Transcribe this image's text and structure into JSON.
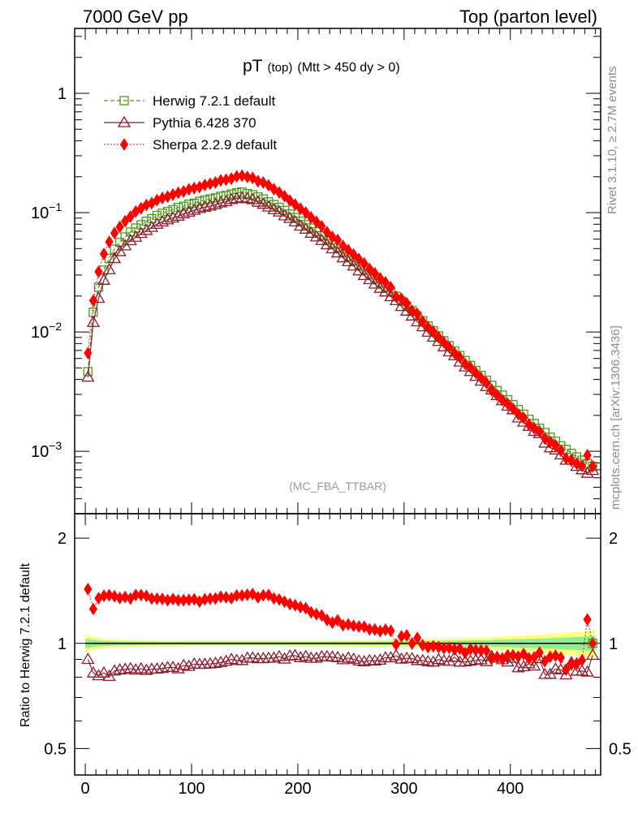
{
  "header": {
    "left": "7000 GeV pp",
    "right": "Top (parton level)"
  },
  "side_labels": {
    "rivet": "Rivet 3.1.10, ≥ 2.7M events",
    "mcplots": "mcplots.cern.ch [arXiv:1306.3436]"
  },
  "plot_title": {
    "main": "pT",
    "sub": "(top)",
    "cuts": "(Mtt > 450 dy > 0)"
  },
  "analysis_tag": "(MC_FBA_TTBAR)",
  "legend": [
    {
      "name": "Herwig 7.2.1 default",
      "color": "#4a9a1a",
      "marker": "open-square",
      "line": "dashed"
    },
    {
      "name": "Pythia 6.428 370",
      "color": "#8b1a2a",
      "marker": "open-triangle",
      "line": "solid"
    },
    {
      "name": "Sherpa 2.2.9 default",
      "color": "#ff0000",
      "marker": "filled-diamond",
      "line": "dotted"
    }
  ],
  "chart_data": [
    {
      "type": "line",
      "title": "pT (top) (Mtt > 450 dy > 0)",
      "yscale": "log",
      "xlim": [
        -10,
        485
      ],
      "ylim": [
        0.0003,
        3.5
      ],
      "yticks": [
        {
          "v": 1,
          "label": "1",
          "exp": ""
        },
        {
          "v": 0.1,
          "label": "10",
          "exp": "−1"
        },
        {
          "v": 0.01,
          "label": "10",
          "exp": "−2"
        },
        {
          "v": 0.001,
          "label": "10",
          "exp": "−3"
        }
      ],
      "x": [
        2.5,
        7.5,
        12.5,
        17.5,
        22.5,
        27.5,
        32.5,
        37.5,
        42.5,
        47.5,
        52.5,
        57.5,
        62.5,
        67.5,
        72.5,
        77.5,
        82.5,
        87.5,
        92.5,
        97.5,
        102.5,
        107.5,
        112.5,
        117.5,
        122.5,
        127.5,
        132.5,
        137.5,
        142.5,
        147.5,
        152.5,
        157.5,
        162.5,
        167.5,
        172.5,
        177.5,
        182.5,
        187.5,
        192.5,
        197.5,
        202.5,
        207.5,
        212.5,
        217.5,
        222.5,
        227.5,
        232.5,
        237.5,
        242.5,
        247.5,
        252.5,
        257.5,
        262.5,
        267.5,
        272.5,
        277.5,
        282.5,
        287.5,
        292.5,
        297.5,
        302.5,
        307.5,
        312.5,
        317.5,
        322.5,
        327.5,
        332.5,
        337.5,
        342.5,
        347.5,
        352.5,
        357.5,
        362.5,
        367.5,
        372.5,
        377.5,
        382.5,
        387.5,
        392.5,
        397.5,
        402.5,
        407.5,
        412.5,
        417.5,
        422.5,
        427.5,
        432.5,
        437.5,
        442.5,
        447.5,
        452.5,
        457.5,
        462.5,
        467.5,
        472.5,
        477.5
      ],
      "series": [
        {
          "name": "Herwig 7.2.1 default",
          "values": [
            0.00465,
            0.01462,
            0.02374,
            0.03298,
            0.04133,
            0.04945,
            0.05627,
            0.06256,
            0.06889,
            0.07431,
            0.07915,
            0.08476,
            0.08926,
            0.09475,
            0.09888,
            0.1023,
            0.1058,
            0.1105,
            0.1132,
            0.1177,
            0.1201,
            0.1244,
            0.1276,
            0.1302,
            0.1333,
            0.1371,
            0.1394,
            0.1431,
            0.1468,
            0.149,
            0.1445,
            0.1413,
            0.1355,
            0.1302,
            0.1232,
            0.1169,
            0.1107,
            0.1043,
            0.09739,
            0.09097,
            0.08491,
            0.07925,
            0.07427,
            0.06917,
            0.06392,
            0.05871,
            0.05456,
            0.05059,
            0.04665,
            0.04283,
            0.03966,
            0.03653,
            0.03362,
            0.03078,
            0.02831,
            0.02595,
            0.02382,
            0.02174,
            0.0199,
            0.01814,
            0.0165,
            0.01506,
            0.01363,
            0.01239,
            0.01124,
            0.01025,
            0.009284,
            0.008452,
            0.007675,
            0.006934,
            0.006348,
            0.005753,
            0.005245,
            0.004755,
            0.004317,
            0.003942,
            0.003569,
            0.003232,
            0.002959,
            0.002706,
            0.002461,
            0.002236,
            0.002047,
            0.001856,
            0.001708,
            0.001558,
            0.001439,
            0.001313,
            0.001215,
            0.001113,
            0.001037,
            0.000961,
            0.000898,
            0.000842,
            0.000792,
            0.000748
          ]
        },
        {
          "name": "Pythia 6.428 370",
          "values": [
            0.00419,
            0.01204,
            0.01918,
            0.02714,
            0.03329,
            0.04126,
            0.04725,
            0.05275,
            0.05832,
            0.06233,
            0.06699,
            0.07098,
            0.07534,
            0.08009,
            0.08386,
            0.08728,
            0.09036,
            0.09353,
            0.09791,
            0.1012,
            0.1049,
            0.1084,
            0.1113,
            0.1138,
            0.1169,
            0.1209,
            0.1239,
            0.1288,
            0.1313,
            0.133,
            0.1312,
            0.1285,
            0.1225,
            0.1178,
            0.1117,
            0.1061,
            0.1015,
            0.09412,
            0.08968,
            0.08394,
            0.07726,
            0.07279,
            0.06734,
            0.06271,
            0.05852,
            0.05384,
            0.04986,
            0.04606,
            0.04191,
            0.03888,
            0.03574,
            0.03256,
            0.02979,
            0.02748,
            0.02522,
            0.02325,
            0.02167,
            0.01979,
            0.01834,
            0.01636,
            0.01497,
            0.01363,
            0.01217,
            0.01106,
            0.009972,
            0.009059,
            0.008347,
            0.007528,
            0.006821,
            0.006334,
            0.005609,
            0.005097,
            0.004669,
            0.004254,
            0.003875,
            0.003496,
            0.003275,
            0.002936,
            0.002656,
            0.002395,
            0.002233,
            0.001904,
            0.001757,
            0.001623,
            0.001472,
            0.001409,
            0.001173,
            0.001072,
            0.001027,
            0.000935,
            0.000843,
            0.000847,
            0.000748,
            0.000701,
            0.000656,
            0.000692
          ]
        },
        {
          "name": "Sherpa 2.2.9 default",
          "values": [
            0.00665,
            0.01834,
            0.03195,
            0.0451,
            0.05679,
            0.06743,
            0.07583,
            0.08487,
            0.09253,
            0.1022,
            0.1088,
            0.1159,
            0.1199,
            0.1272,
            0.1325,
            0.136,
            0.1417,
            0.1467,
            0.1505,
            0.1568,
            0.1606,
            0.1638,
            0.1705,
            0.1747,
            0.1791,
            0.1863,
            0.1888,
            0.1926,
            0.2013,
            0.2042,
            0.1991,
            0.1955,
            0.1835,
            0.1786,
            0.1694,
            0.1571,
            0.1478,
            0.1373,
            0.1262,
            0.1169,
            0.1078,
            0.09996,
            0.09112,
            0.08384,
            0.07682,
            0.06853,
            0.06254,
            0.05891,
            0.05256,
            0.04851,
            0.04455,
            0.0408,
            0.03748,
            0.03378,
            0.03099,
            0.02813,
            0.02606,
            0.02362,
            0.01974,
            0.01899,
            0.01739,
            0.01504,
            0.01412,
            0.01224,
            0.01096,
            0.01006,
            0.009054,
            0.008182,
            0.007454,
            0.00666,
            0.006135,
            0.005398,
            0.00505,
            0.004547,
            0.004117,
            0.003753,
            0.003233,
            0.002954,
            0.002678,
            0.002501,
            0.002274,
            0.002048,
            0.001907,
            0.001681,
            0.001558,
            0.001466,
            0.001279,
            0.001201,
            0.001121,
            0.001013,
            0.000872,
            0.000836,
            0.000787,
            0.000753,
            0.000927,
            0.000748
          ]
        }
      ]
    },
    {
      "type": "line",
      "ylabel": "Ratio to Herwig 7.2.1 default",
      "yscale": "log",
      "ylim": [
        0.42,
        2.35
      ],
      "yticks": [
        {
          "v": 2,
          "label": "2"
        },
        {
          "v": 1,
          "label": "1"
        },
        {
          "v": 0.5,
          "label": "0.5"
        }
      ],
      "xticks": [
        0,
        100,
        200,
        300,
        400
      ],
      "x": [
        2.5,
        7.5,
        12.5,
        17.5,
        22.5,
        27.5,
        32.5,
        37.5,
        42.5,
        47.5,
        52.5,
        57.5,
        62.5,
        67.5,
        72.5,
        77.5,
        82.5,
        87.5,
        92.5,
        97.5,
        102.5,
        107.5,
        112.5,
        117.5,
        122.5,
        127.5,
        132.5,
        137.5,
        142.5,
        147.5,
        152.5,
        157.5,
        162.5,
        167.5,
        172.5,
        177.5,
        182.5,
        187.5,
        192.5,
        197.5,
        202.5,
        207.5,
        212.5,
        217.5,
        222.5,
        227.5,
        232.5,
        237.5,
        242.5,
        247.5,
        252.5,
        257.5,
        262.5,
        267.5,
        272.5,
        277.5,
        282.5,
        287.5,
        292.5,
        297.5,
        302.5,
        307.5,
        312.5,
        317.5,
        322.5,
        327.5,
        332.5,
        337.5,
        342.5,
        347.5,
        352.5,
        357.5,
        362.5,
        367.5,
        372.5,
        377.5,
        382.5,
        387.5,
        392.5,
        397.5,
        402.5,
        407.5,
        412.5,
        417.5,
        422.5,
        427.5,
        432.5,
        437.5,
        442.5,
        447.5,
        452.5,
        457.5,
        462.5,
        467.5,
        472.5,
        477.5
      ],
      "band_unc": [
        0.055,
        0.043,
        0.036,
        0.032,
        0.028,
        0.026,
        0.025,
        0.024,
        0.023,
        0.022,
        0.022,
        0.021,
        0.021,
        0.02,
        0.02,
        0.02,
        0.02,
        0.02,
        0.019,
        0.019,
        0.019,
        0.019,
        0.019,
        0.019,
        0.019,
        0.019,
        0.019,
        0.019,
        0.019,
        0.019,
        0.019,
        0.019,
        0.019,
        0.019,
        0.019,
        0.019,
        0.019,
        0.019,
        0.019,
        0.02,
        0.02,
        0.02,
        0.02,
        0.02,
        0.02,
        0.02,
        0.02,
        0.021,
        0.021,
        0.021,
        0.021,
        0.022,
        0.022,
        0.022,
        0.022,
        0.023,
        0.023,
        0.024,
        0.024,
        0.025,
        0.025,
        0.026,
        0.027,
        0.027,
        0.028,
        0.029,
        0.03,
        0.031,
        0.032,
        0.033,
        0.034,
        0.035,
        0.036,
        0.037,
        0.038,
        0.04,
        0.041,
        0.043,
        0.044,
        0.046,
        0.048,
        0.05,
        0.052,
        0.054,
        0.056,
        0.059,
        0.061,
        0.064,
        0.066,
        0.069,
        0.072,
        0.075,
        0.078,
        0.081,
        0.085,
        0.088
      ],
      "series": [
        {
          "name": "Herwig 7.2.1 default",
          "values": [
            1,
            1,
            1,
            1,
            1,
            1,
            1,
            1,
            1,
            1,
            1,
            1,
            1,
            1,
            1,
            1,
            1,
            1,
            1,
            1,
            1,
            1,
            1,
            1,
            1,
            1,
            1,
            1,
            1,
            1,
            1,
            1,
            1,
            1,
            1,
            1,
            1,
            1,
            1,
            1,
            1,
            1,
            1,
            1,
            1,
            1,
            1,
            1,
            1,
            1,
            1,
            1,
            1,
            1,
            1,
            1,
            1,
            1,
            1,
            1,
            1,
            1,
            1,
            1,
            1,
            1,
            1,
            1,
            1,
            1,
            1,
            1,
            1,
            1,
            1,
            1,
            1,
            1,
            1,
            1,
            1,
            1,
            1,
            1,
            1,
            1,
            1,
            1,
            1,
            1,
            1,
            1,
            1,
            1,
            1,
            1
          ]
        },
        {
          "name": "Pythia 6.428 370",
          "values": [
            0.9,
            0.823,
            0.808,
            0.823,
            0.805,
            0.834,
            0.84,
            0.843,
            0.847,
            0.839,
            0.846,
            0.837,
            0.844,
            0.845,
            0.848,
            0.853,
            0.854,
            0.846,
            0.865,
            0.86,
            0.873,
            0.871,
            0.872,
            0.874,
            0.877,
            0.882,
            0.889,
            0.9,
            0.894,
            0.893,
            0.908,
            0.909,
            0.904,
            0.905,
            0.907,
            0.908,
            0.917,
            0.902,
            0.921,
            0.923,
            0.91,
            0.918,
            0.907,
            0.907,
            0.916,
            0.917,
            0.914,
            0.911,
            0.898,
            0.908,
            0.901,
            0.891,
            0.886,
            0.893,
            0.891,
            0.896,
            0.91,
            0.91,
            0.922,
            0.902,
            0.907,
            0.905,
            0.893,
            0.893,
            0.887,
            0.884,
            0.899,
            0.891,
            0.889,
            0.913,
            0.884,
            0.886,
            0.89,
            0.895,
            0.898,
            0.887,
            0.918,
            0.908,
            0.898,
            0.885,
            0.907,
            0.852,
            0.858,
            0.874,
            0.862,
            0.904,
            0.815,
            0.816,
            0.845,
            0.84,
            0.813,
            0.881,
            0.833,
            0.833,
            0.828,
            0.925
          ]
        },
        {
          "name": "Sherpa 2.2.9 default",
          "values": [
            1.43,
            1.254,
            1.346,
            1.368,
            1.374,
            1.364,
            1.348,
            1.357,
            1.343,
            1.375,
            1.375,
            1.367,
            1.343,
            1.342,
            1.34,
            1.329,
            1.339,
            1.328,
            1.329,
            1.332,
            1.337,
            1.317,
            1.336,
            1.342,
            1.344,
            1.359,
            1.354,
            1.346,
            1.371,
            1.371,
            1.378,
            1.384,
            1.354,
            1.372,
            1.375,
            1.344,
            1.335,
            1.316,
            1.296,
            1.285,
            1.27,
            1.261,
            1.227,
            1.212,
            1.202,
            1.167,
            1.146,
            1.164,
            1.127,
            1.133,
            1.123,
            1.117,
            1.115,
            1.097,
            1.095,
            1.084,
            1.094,
            1.086,
            0.992,
            1.047,
            1.054,
            0.999,
            1.036,
            0.988,
            0.975,
            0.981,
            0.975,
            0.968,
            0.971,
            0.96,
            0.966,
            0.938,
            0.963,
            0.956,
            0.954,
            0.952,
            0.906,
            0.914,
            0.905,
            0.924,
            0.924,
            0.916,
            0.932,
            0.906,
            0.912,
            0.941,
            0.889,
            0.915,
            0.922,
            0.91,
            0.841,
            0.87,
            0.876,
            0.894,
            1.17,
            1.0
          ]
        }
      ]
    }
  ]
}
